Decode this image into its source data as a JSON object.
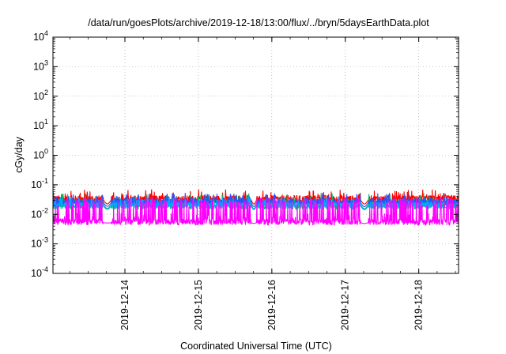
{
  "chart_data": {
    "type": "line",
    "title": "/data/run/goesPlots/archive/2019-12-18/13:00/flux/../bryn/5daysEarthData.plot",
    "xlabel": "Coordinated Universal Time (UTC)",
    "ylabel": "cGy/day",
    "yscale": "log",
    "ylim": [
      0.0001,
      10000
    ],
    "y_ticks": [
      {
        "value": 10000,
        "base": "10",
        "exp": "4"
      },
      {
        "value": 1000,
        "base": "10",
        "exp": "3"
      },
      {
        "value": 100,
        "base": "10",
        "exp": "2"
      },
      {
        "value": 10,
        "base": "10",
        "exp": "1"
      },
      {
        "value": 1,
        "base": "10",
        "exp": "0"
      },
      {
        "value": 0.1,
        "base": "10",
        "exp": "-1"
      },
      {
        "value": 0.01,
        "base": "10",
        "exp": "-2"
      },
      {
        "value": 0.001,
        "base": "10",
        "exp": "-3"
      },
      {
        "value": 0.0001,
        "base": "10",
        "exp": "-4"
      }
    ],
    "xlim": [
      "2019-12-13T00:30",
      "2019-12-18T13:00"
    ],
    "x_ticks": [
      "2019-12-14",
      "2019-12-15",
      "2019-12-16",
      "2019-12-17",
      "2019-12-18"
    ],
    "grid": true,
    "legend": "none",
    "series": [
      {
        "color": "#ff0000",
        "base": 0.032,
        "spread": 0.28
      },
      {
        "color": "#00bb66",
        "base": 0.022,
        "spread": 0.35
      },
      {
        "color": "#2255ff",
        "base": 0.026,
        "spread": 0.22
      },
      {
        "color": "#00aaff",
        "base": 0.02,
        "spread": 0.2
      },
      {
        "color": "#ff00ff",
        "base": 0.0055,
        "spread": 0.2,
        "spikes_to": 0.03
      }
    ],
    "data_gaps": [
      {
        "start": "2019-12-13T17:00",
        "end": "2019-12-13T19:30",
        "low": 0.0045
      },
      {
        "start": "2019-12-15T17:15",
        "end": "2019-12-15T19:00",
        "low": 0.0038
      },
      {
        "start": "2019-12-17T05:00",
        "end": "2019-12-17T07:30",
        "low": 0.0035
      }
    ]
  }
}
